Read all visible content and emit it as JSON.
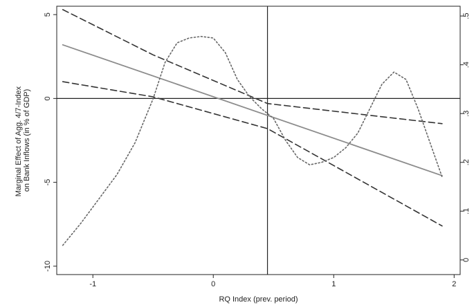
{
  "chart_data": {
    "type": "line",
    "xlabel": "RQ Index (prev. period)",
    "ylabel": "Marginal Effect of Agg. 4/7-Index on Bank Inflows (in % of GDP)",
    "ylabel_lines": [
      "Marginal Effect of Agg. 4/7-Index",
      "on Bank Inflows (in % of GDP)"
    ],
    "xlim": [
      -1.3,
      2.05
    ],
    "ylim": [
      -10.5,
      5.5
    ],
    "y2lim": [
      -0.03,
      0.52
    ],
    "x_ticks": [
      -1,
      0,
      1,
      2
    ],
    "x_tick_labels": [
      "-1",
      "0",
      "1",
      "2"
    ],
    "y_ticks": [
      5,
      0,
      -5,
      -10
    ],
    "y_tick_labels": [
      "5",
      "0",
      "-5",
      "-10"
    ],
    "y2_ticks": [
      0,
      0.1,
      0.2,
      0.3,
      0.4,
      0.5
    ],
    "y2_tick_labels": [
      "0",
      ".1",
      ".2",
      ".3",
      ".4",
      ".5"
    ],
    "reference_lines": {
      "x": 0.45,
      "y": 0
    },
    "grid": false,
    "series": [
      {
        "style": "solid",
        "color": "#8c8c8c",
        "axis": "left",
        "x": [
          -1.25,
          1.9
        ],
        "y": [
          3.2,
          -4.6
        ]
      },
      {
        "style": "dashed",
        "color": "#333333",
        "axis": "left",
        "x": [
          -1.25,
          -0.5,
          0.45,
          1.9
        ],
        "y": [
          5.3,
          2.6,
          -0.3,
          -1.5
        ]
      },
      {
        "style": "dashed",
        "color": "#333333",
        "axis": "left",
        "x": [
          -1.25,
          -0.5,
          0.45,
          1.9
        ],
        "y": [
          1.0,
          0.1,
          -1.8,
          -7.6
        ]
      },
      {
        "style": "dotted",
        "color": "#666666",
        "axis": "right",
        "x": [
          -1.25,
          -1.1,
          -0.95,
          -0.8,
          -0.65,
          -0.5,
          -0.4,
          -0.3,
          -0.2,
          -0.1,
          0.0,
          0.1,
          0.2,
          0.3,
          0.4,
          0.5,
          0.6,
          0.7,
          0.8,
          0.9,
          1.0,
          1.1,
          1.2,
          1.3,
          1.4,
          1.5,
          1.6,
          1.7,
          1.8,
          1.9
        ],
        "y": [
          0.03,
          0.075,
          0.125,
          0.175,
          0.24,
          0.33,
          0.405,
          0.445,
          0.455,
          0.458,
          0.455,
          0.425,
          0.37,
          0.335,
          0.31,
          0.29,
          0.245,
          0.21,
          0.195,
          0.2,
          0.21,
          0.23,
          0.26,
          0.31,
          0.36,
          0.385,
          0.37,
          0.31,
          0.24,
          0.17
        ]
      }
    ]
  }
}
